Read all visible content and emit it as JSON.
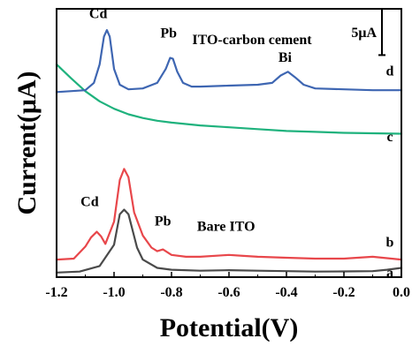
{
  "chart_data": {
    "type": "line",
    "title": "",
    "xlabel": "Potential(V)",
    "ylabel": "Current(μA)",
    "xlim": [
      -1.2,
      0.0
    ],
    "x_ticks": [
      "-1.2",
      "-1.0",
      "-0.8",
      "-0.6",
      "-0.4",
      "-0.2",
      "0.0"
    ],
    "x_tick_values": [
      -1.2,
      -1.0,
      -0.8,
      -0.6,
      -0.4,
      -0.2,
      0.0
    ],
    "y_units": "arbitrary (curves vertically offset)",
    "ylim": [
      0,
      29
    ],
    "grid": false,
    "scale_bar": {
      "label": "5μA",
      "value": 5.0,
      "y_top": 29.0
    },
    "series": [
      {
        "name": "a",
        "color": "#4a4a4a",
        "x": [
          -1.2,
          -1.12,
          -1.05,
          -1.0,
          -0.98,
          -0.965,
          -0.95,
          -0.92,
          -0.9,
          -0.85,
          -0.8,
          -0.7,
          -0.6,
          -0.5,
          -0.4,
          -0.3,
          -0.2,
          -0.1,
          -0.05,
          0.0
        ],
        "y": [
          0.5,
          0.6,
          1.2,
          3.5,
          6.8,
          7.3,
          6.8,
          3.2,
          1.9,
          1.0,
          0.8,
          0.7,
          0.75,
          0.7,
          0.65,
          0.6,
          0.62,
          0.65,
          0.8,
          1.0
        ]
      },
      {
        "name": "b",
        "color": "#e8474b",
        "x": [
          -1.2,
          -1.14,
          -1.1,
          -1.08,
          -1.06,
          -1.045,
          -1.03,
          -1.0,
          -0.98,
          -0.965,
          -0.95,
          -0.93,
          -0.9,
          -0.87,
          -0.85,
          -0.83,
          -0.8,
          -0.75,
          -0.7,
          -0.6,
          -0.55,
          -0.5,
          -0.4,
          -0.3,
          -0.2,
          -0.1,
          0.0
        ],
        "y": [
          1.9,
          2.0,
          3.3,
          4.3,
          4.9,
          4.4,
          3.6,
          6.0,
          10.5,
          11.7,
          10.8,
          7.0,
          4.5,
          3.2,
          2.8,
          3.0,
          2.4,
          2.2,
          2.2,
          2.4,
          2.3,
          2.2,
          2.1,
          2.0,
          2.0,
          2.2,
          1.9
        ]
      },
      {
        "name": "c",
        "color": "#1fb27d",
        "x": [
          -1.2,
          -1.15,
          -1.1,
          -1.05,
          -1.0,
          -0.95,
          -0.9,
          -0.85,
          -0.8,
          -0.7,
          -0.6,
          -0.5,
          -0.4,
          -0.3,
          -0.2,
          -0.1,
          0.0
        ],
        "y": [
          23.0,
          21.5,
          20.1,
          19.0,
          18.2,
          17.6,
          17.2,
          16.9,
          16.7,
          16.4,
          16.2,
          16.0,
          15.8,
          15.7,
          15.6,
          15.55,
          15.5
        ]
      },
      {
        "name": "d",
        "color": "#3e66b2",
        "x": [
          -1.2,
          -1.1,
          -1.07,
          -1.05,
          -1.035,
          -1.025,
          -1.015,
          -1.0,
          -0.98,
          -0.95,
          -0.9,
          -0.85,
          -0.82,
          -0.805,
          -0.795,
          -0.78,
          -0.76,
          -0.73,
          -0.7,
          -0.6,
          -0.5,
          -0.45,
          -0.42,
          -0.395,
          -0.37,
          -0.34,
          -0.3,
          -0.2,
          -0.1,
          0.0
        ],
        "y": [
          20.0,
          20.2,
          21.0,
          23.0,
          26.0,
          26.7,
          26.0,
          22.5,
          20.8,
          20.3,
          20.4,
          21.0,
          22.5,
          23.7,
          23.6,
          22.2,
          21.0,
          20.6,
          20.6,
          20.7,
          20.8,
          21.0,
          21.8,
          22.2,
          21.6,
          20.8,
          20.4,
          20.3,
          20.2,
          20.2
        ]
      }
    ],
    "annotations": [
      {
        "text": "Cd",
        "x": -1.055,
        "y": 28.0
      },
      {
        "text": "Pb",
        "x": -0.81,
        "y": 25.9
      },
      {
        "text": "ITO-carbon cement",
        "x": -0.52,
        "y": 25.2
      },
      {
        "text": "Bi",
        "x": -0.405,
        "y": 23.3
      },
      {
        "text": "d",
        "x": -0.04,
        "y": 21.8
      },
      {
        "text": "c",
        "x": -0.04,
        "y": 14.7
      },
      {
        "text": "Cd",
        "x": -1.085,
        "y": 7.7
      },
      {
        "text": "Pb",
        "x": -0.83,
        "y": 5.6
      },
      {
        "text": "Bare ITO",
        "x": -0.61,
        "y": 5.0
      },
      {
        "text": "b",
        "x": -0.04,
        "y": 3.3
      },
      {
        "text": "a",
        "x": -0.04,
        "y": 0.0
      }
    ]
  }
}
